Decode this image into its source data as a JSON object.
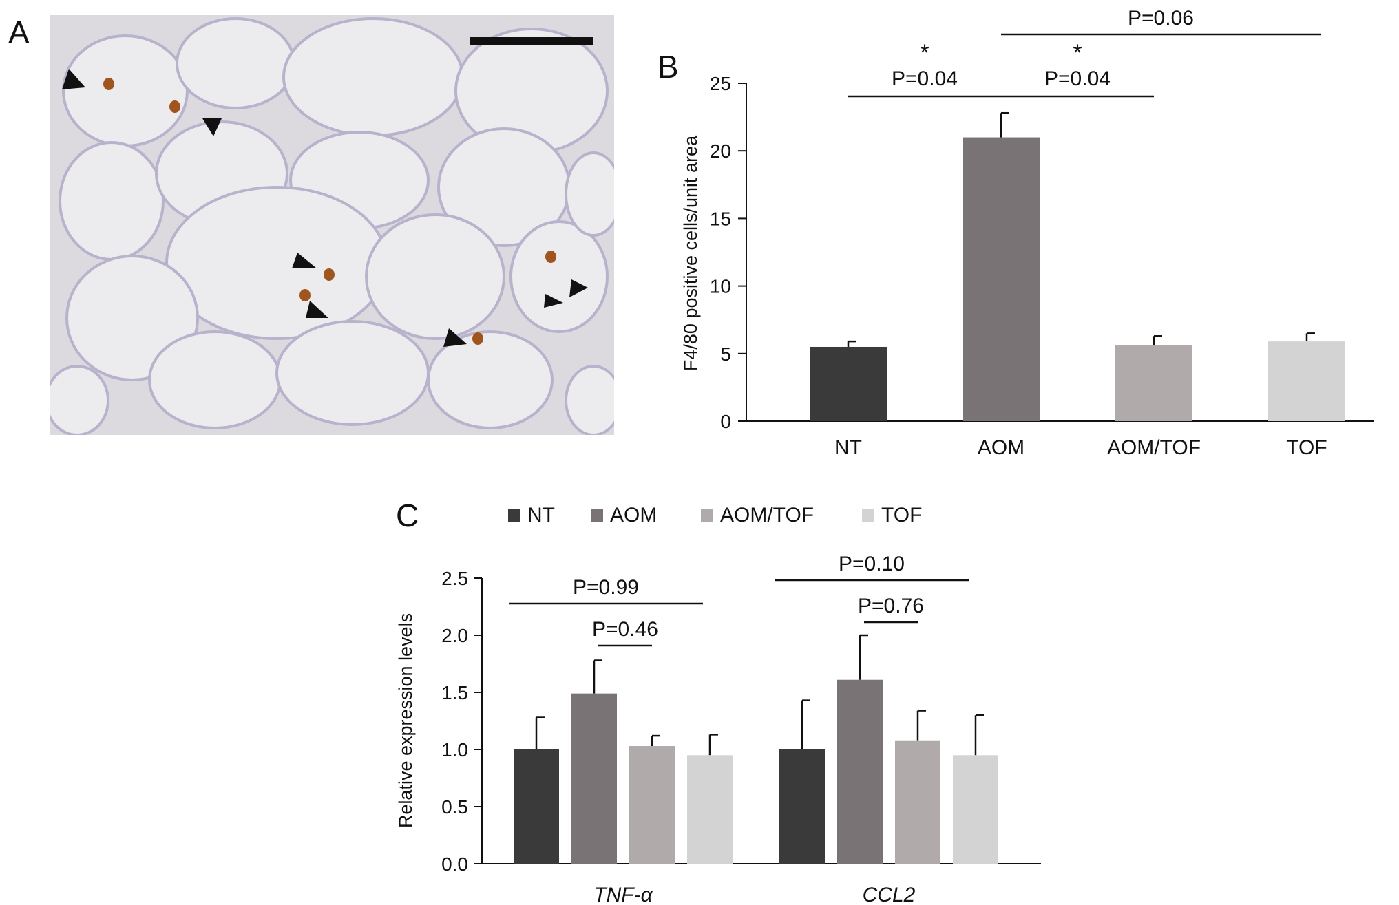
{
  "panels": {
    "a": {
      "letter": "A"
    },
    "b": {
      "letter": "B"
    },
    "c": {
      "letter": "C"
    }
  },
  "micrograph": {
    "background_color": "#dcdadf",
    "membrane_color": "#b9b2cc",
    "stain_color": "#a0541e",
    "scale_bar_color": "#111111",
    "arrowhead_icon": "black-triangle-arrowhead",
    "arrowhead_count": 7
  },
  "colors": {
    "NT": "#3a3a3a",
    "AOM": "#7a7375",
    "AOM/TOF": "#b0aaab",
    "TOF": "#d3d3d3"
  },
  "chart_data": [
    {
      "id": "B",
      "type": "bar",
      "title": "",
      "xlabel": "",
      "ylabel": "F4/80 positive cells/unit area",
      "categories": [
        "NT",
        "AOM",
        "AOM/TOF",
        "TOF"
      ],
      "values": [
        5.5,
        21.0,
        5.6,
        5.9
      ],
      "errors": [
        0.4,
        1.8,
        0.7,
        0.6
      ],
      "ylim": [
        0,
        25
      ],
      "yticks": [
        "0",
        "5",
        "10",
        "15",
        "20",
        "25"
      ],
      "grid": false,
      "annotations": [
        {
          "from": "NT",
          "to": "AOM",
          "label": "P=0.04",
          "star": "*"
        },
        {
          "from": "AOM",
          "to": "AOM/TOF",
          "label": "P=0.04",
          "star": "*"
        },
        {
          "from": "AOM",
          "to": "TOF",
          "label": "P=0.06",
          "star": ""
        }
      ]
    },
    {
      "id": "C",
      "type": "bar",
      "title": "",
      "xlabel": "",
      "ylabel": "Relative expression levels",
      "categories": [
        "TNF-α",
        "CCL2"
      ],
      "series": [
        {
          "name": "NT",
          "values": [
            1.0,
            1.0
          ],
          "errors": [
            0.28,
            0.43
          ]
        },
        {
          "name": "AOM",
          "values": [
            1.49,
            1.61
          ],
          "errors": [
            0.29,
            0.39
          ]
        },
        {
          "name": "AOM/TOF",
          "values": [
            1.03,
            1.08
          ],
          "errors": [
            0.09,
            0.26
          ]
        },
        {
          "name": "TOF",
          "values": [
            0.95,
            0.95
          ],
          "errors": [
            0.18,
            0.35
          ]
        }
      ],
      "ylim": [
        0,
        2.5
      ],
      "yticks": [
        "0.0",
        "0.5",
        "1.0",
        "1.5",
        "2.0",
        "2.5"
      ],
      "legend_position": "top",
      "grid": false,
      "annotations": [
        {
          "category": "TNF-α",
          "from": "NT",
          "to": "TOF",
          "label": "P=0.99"
        },
        {
          "category": "TNF-α",
          "from": "AOM",
          "to": "AOM/TOF",
          "label": "P=0.46"
        },
        {
          "category": "CCL2",
          "from": "NT",
          "to": "TOF",
          "label": "P=0.10"
        },
        {
          "category": "CCL2",
          "from": "AOM",
          "to": "AOM/TOF",
          "label": "P=0.76"
        }
      ]
    }
  ]
}
